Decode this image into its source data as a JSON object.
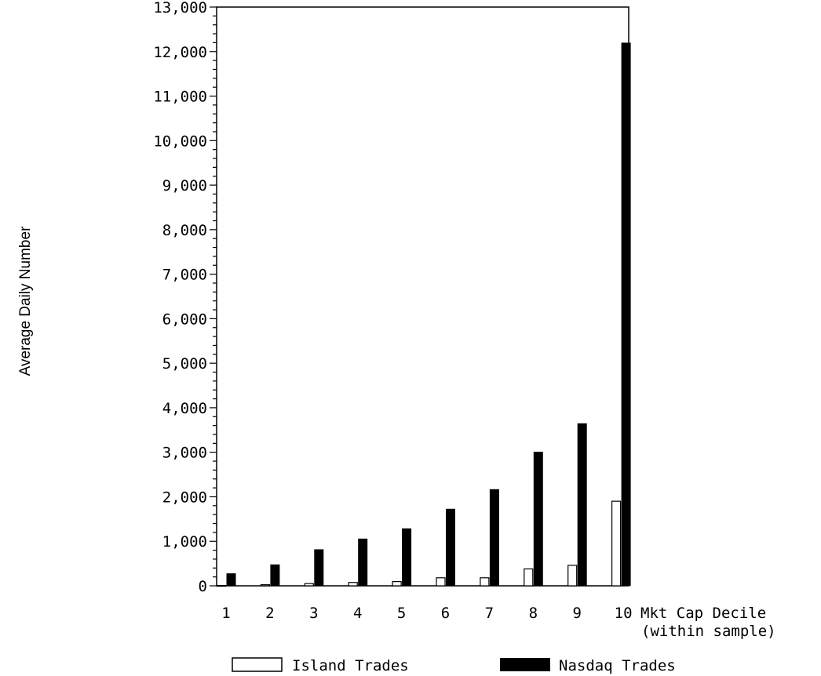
{
  "chart_data": {
    "type": "bar",
    "categories": [
      "1",
      "2",
      "3",
      "4",
      "5",
      "6",
      "7",
      "8",
      "9",
      "10"
    ],
    "series": [
      {
        "name": "Island Trades",
        "values": [
          5,
          25,
          50,
          75,
          95,
          180,
          180,
          380,
          460,
          1900
        ],
        "color": "#ffffff"
      },
      {
        "name": "Nasdaq Trades",
        "values": [
          280,
          480,
          820,
          1060,
          1290,
          1730,
          2170,
          3010,
          3650,
          12200
        ],
        "color": "#000000"
      }
    ],
    "ylabel": "Average Daily Number",
    "xlabel_lines": [
      "Mkt Cap Decile",
      "(within sample)"
    ],
    "ylim": [
      0,
      13000
    ],
    "yticks": [
      "0",
      "1,000",
      "2,000",
      "3,000",
      "4,000",
      "5,000",
      "6,000",
      "7,000",
      "8,000",
      "9,000",
      "10,000",
      "11,000",
      "12,000",
      "13,000"
    ],
    "ytick_values": [
      0,
      1000,
      2000,
      3000,
      4000,
      5000,
      6000,
      7000,
      8000,
      9000,
      10000,
      11000,
      12000,
      13000
    ],
    "legend_position": "bottom",
    "grid": false
  }
}
